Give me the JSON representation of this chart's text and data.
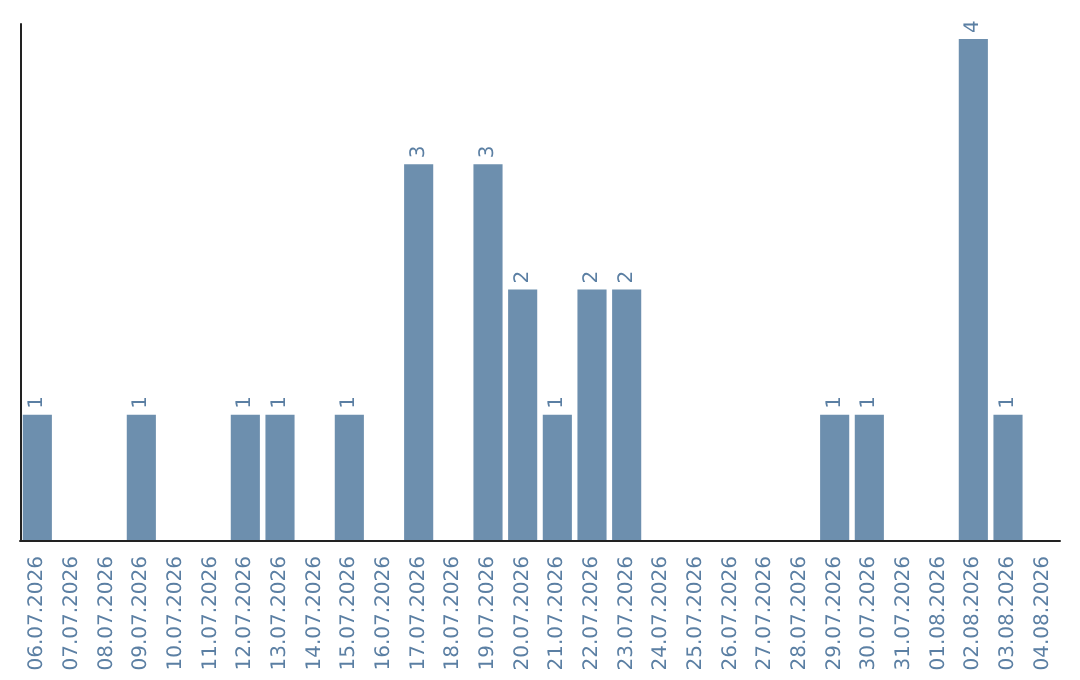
{
  "chart_data": {
    "type": "bar",
    "categories": [
      "06.07.2026",
      "07.07.2026",
      "08.07.2026",
      "09.07.2026",
      "10.07.2026",
      "11.07.2026",
      "12.07.2026",
      "13.07.2026",
      "14.07.2026",
      "15.07.2026",
      "16.07.2026",
      "17.07.2026",
      "18.07.2026",
      "19.07.2026",
      "20.07.2026",
      "21.07.2026",
      "22.07.2026",
      "23.07.2026",
      "24.07.2026",
      "25.07.2026",
      "26.07.2026",
      "27.07.2026",
      "28.07.2026",
      "29.07.2026",
      "30.07.2026",
      "31.07.2026",
      "01.08.2026",
      "02.08.2026",
      "03.08.2026",
      "04.08.2026"
    ],
    "values": [
      1,
      0,
      0,
      1,
      0,
      0,
      1,
      1,
      0,
      1,
      0,
      3,
      0,
      3,
      2,
      1,
      2,
      2,
      0,
      0,
      0,
      0,
      0,
      1,
      1,
      0,
      0,
      4,
      1,
      0
    ],
    "value_labels": [
      "1",
      null,
      null,
      "1",
      null,
      null,
      "1",
      "1",
      null,
      "1",
      null,
      "3",
      null,
      "3",
      "2",
      "1",
      "2",
      "2",
      null,
      null,
      null,
      null,
      null,
      "1",
      "1",
      null,
      null,
      "4",
      "1",
      null
    ],
    "color": "#6d8fae",
    "grid": false,
    "tick_labels": "x"
  }
}
